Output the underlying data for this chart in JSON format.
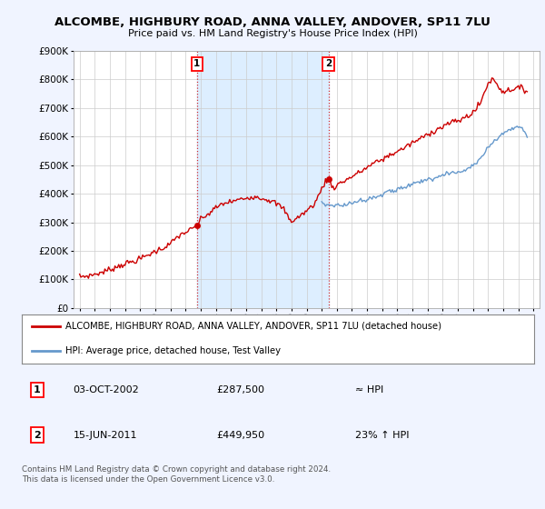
{
  "title": "ALCOMBE, HIGHBURY ROAD, ANNA VALLEY, ANDOVER, SP11 7LU",
  "subtitle": "Price paid vs. HM Land Registry's House Price Index (HPI)",
  "property_label": "ALCOMBE, HIGHBURY ROAD, ANNA VALLEY, ANDOVER, SP11 7LU (detached house)",
  "hpi_label": "HPI: Average price, detached house, Test Valley",
  "sale1_date": "03-OCT-2002",
  "sale1_price": "£287,500",
  "sale1_vs": "≈ HPI",
  "sale2_date": "15-JUN-2011",
  "sale2_price": "£449,950",
  "sale2_vs": "23% ↑ HPI",
  "footnote": "Contains HM Land Registry data © Crown copyright and database right 2024.\nThis data is licensed under the Open Government Licence v3.0.",
  "property_color": "#cc0000",
  "hpi_color": "#6699cc",
  "sale1_x": 2002.75,
  "sale1_y": 287500,
  "sale2_x": 2011.45,
  "sale2_y": 449950,
  "ylim": [
    0,
    900000
  ],
  "xlim_start": 1994.6,
  "xlim_end": 2025.4,
  "background_color": "#f0f4ff",
  "plot_bg": "#ffffff",
  "shade_color": "#ddeeff"
}
